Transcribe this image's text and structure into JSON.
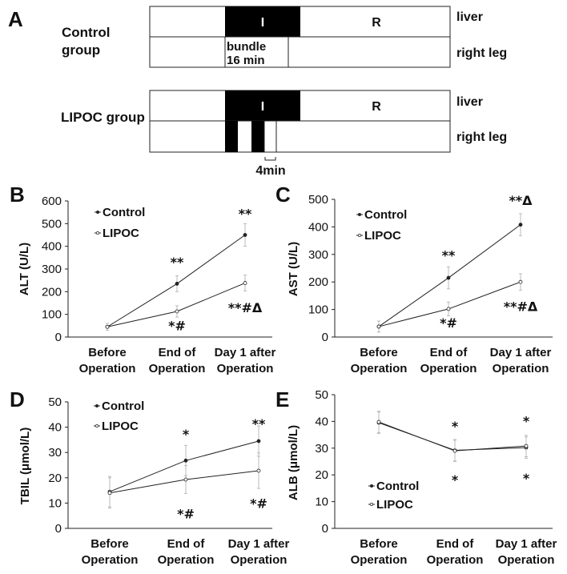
{
  "schematic": {
    "panel_label": "A",
    "control_group": {
      "name_line1": "Control",
      "name_line2": "group",
      "ischemia_label": "I",
      "reperfusion_label": "R",
      "bundle_line1": "bundle",
      "bundle_line2": "16 min"
    },
    "lipoc_group": {
      "name": "LIPOC group",
      "ischemia_label": "I",
      "reperfusion_label": "R",
      "interval_label": "4min"
    },
    "row_labels": {
      "liver": "liver",
      "right_leg": "right leg"
    }
  },
  "chart_data": [
    {
      "panel": "B",
      "type": "line",
      "ylabel": "ALT (U/L)",
      "ylim": [
        0,
        600
      ],
      "yticks": [
        0,
        100,
        200,
        300,
        400,
        500,
        600
      ],
      "categories": [
        [
          "Before",
          "Operation"
        ],
        [
          "End of",
          "Operation"
        ],
        [
          "Day 1 after",
          "Operation"
        ]
      ],
      "legend": [
        "Control",
        "LIPOC"
      ],
      "series": [
        {
          "name": "Control",
          "values": [
            45,
            235,
            450
          ],
          "errors": [
            15,
            35,
            50
          ]
        },
        {
          "name": "LIPOC",
          "values": [
            45,
            113,
            238
          ],
          "errors": [
            15,
            25,
            35
          ]
        }
      ],
      "annotations": [
        {
          "text": "**",
          "x": 1,
          "y": 310
        },
        {
          "text": "*#",
          "x": 1,
          "y": 30
        },
        {
          "text": "**",
          "x": 2,
          "y": 525
        },
        {
          "text": "**#Δ",
          "x": 2,
          "y": 110
        }
      ]
    },
    {
      "panel": "C",
      "type": "line",
      "ylabel": "AST (U/L)",
      "ylim": [
        0,
        500
      ],
      "yticks": [
        0,
        100,
        200,
        300,
        400,
        500
      ],
      "categories": [
        [
          "Before",
          "Operation"
        ],
        [
          "End of",
          "Operation"
        ],
        [
          "Day 1 after",
          "Operation"
        ]
      ],
      "legend": [
        "Control",
        "LIPOC"
      ],
      "series": [
        {
          "name": "Control",
          "values": [
            38,
            215,
            408
          ],
          "errors": [
            20,
            40,
            40
          ]
        },
        {
          "name": "LIPOC",
          "values": [
            38,
            102,
            200
          ],
          "errors": [
            20,
            25,
            30
          ]
        }
      ],
      "annotations": [
        {
          "text": "**",
          "x": 1,
          "y": 280
        },
        {
          "text": "*#",
          "x": 1,
          "y": 35
        },
        {
          "text": "**Δ",
          "x": 2,
          "y": 480
        },
        {
          "text": "**#Δ",
          "x": 2,
          "y": 95
        }
      ]
    },
    {
      "panel": "D",
      "type": "line",
      "ylabel": "TBIL (μmol/L)",
      "ylim": [
        0,
        50
      ],
      "yticks": [
        0,
        10,
        20,
        30,
        40,
        50
      ],
      "categories": [
        [
          "Before",
          "Operation"
        ],
        [
          "End of",
          "Operation"
        ],
        [
          "Day 1 after",
          "Operation"
        ]
      ],
      "legend": [
        "Control",
        "LIPOC"
      ],
      "series": [
        {
          "name": "Control",
          "values": [
            14.5,
            26.8,
            34.5
          ],
          "errors": [
            6,
            6,
            6
          ]
        },
        {
          "name": "LIPOC",
          "values": [
            14.0,
            19.3,
            22.8
          ],
          "errors": [
            6,
            5.5,
            7
          ]
        }
      ],
      "annotations": [
        {
          "text": "*",
          "x": 1,
          "y": 35.5
        },
        {
          "text": "*#",
          "x": 1,
          "y": 4
        },
        {
          "text": "**",
          "x": 2,
          "y": 39.5
        },
        {
          "text": "*#",
          "x": 2,
          "y": 8
        }
      ]
    },
    {
      "panel": "E",
      "type": "line",
      "ylabel": "ALB (μmol/L)",
      "ylim": [
        0,
        50
      ],
      "yticks": [
        0,
        10,
        20,
        30,
        40,
        50
      ],
      "categories": [
        [
          "Before",
          "Operation"
        ],
        [
          "End of",
          "Operation"
        ],
        [
          "Day 1 after",
          "Operation"
        ]
      ],
      "legend": [
        "Control",
        "LIPOC"
      ],
      "series": [
        {
          "name": "Control",
          "values": [
            39.5,
            29.2,
            30.2
          ],
          "errors": [
            4,
            4,
            4
          ]
        },
        {
          "name": "LIPOC",
          "values": [
            39.8,
            29.0,
            30.8
          ],
          "errors": [
            4,
            4,
            4
          ]
        }
      ],
      "annotations": [
        {
          "text": "*",
          "x": 1,
          "y": 36.5
        },
        {
          "text": "*",
          "x": 1,
          "y": 16.5
        },
        {
          "text": "*",
          "x": 2,
          "y": 38.5
        },
        {
          "text": "*",
          "x": 2,
          "y": 17
        }
      ]
    }
  ]
}
